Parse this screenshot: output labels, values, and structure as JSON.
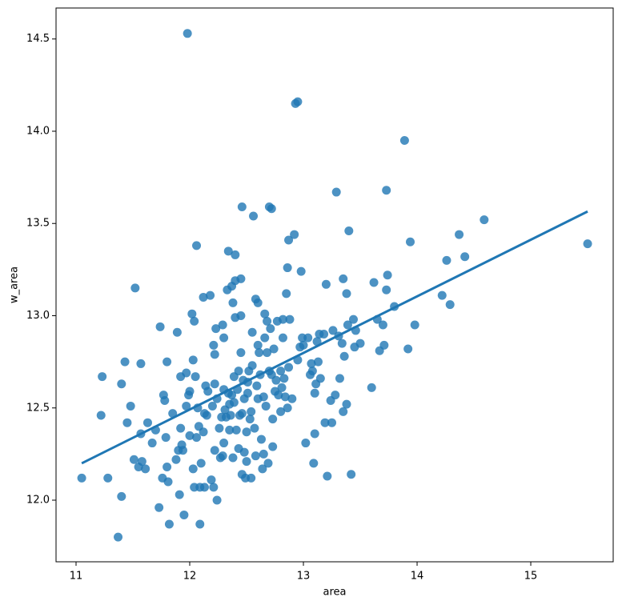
{
  "chart_data": {
    "type": "scatter",
    "xlabel": "area",
    "ylabel": "w_area",
    "color": "#1f77b4",
    "alpha": 0.8,
    "grid": false,
    "xlim": [
      10.824,
      15.725
    ],
    "ylim": [
      11.666,
      14.668
    ],
    "xticks": [
      11,
      12,
      13,
      14,
      15
    ],
    "yticks": [
      {
        "value": 12,
        "label": "12.0"
      },
      12.5,
      {
        "value": 13,
        "label": "13.0"
      },
      13.5,
      {
        "value": 14,
        "label": "14.0"
      },
      14.5
    ],
    "regression": {
      "color": "#1f77b4",
      "x": [
        11.05,
        15.5
      ],
      "y": [
        12.2,
        13.565
      ]
    },
    "x": [
      11.05,
      11.22,
      11.23,
      11.28,
      11.37,
      11.4,
      11.4,
      11.43,
      11.45,
      11.48,
      11.51,
      11.52,
      11.55,
      11.57,
      11.57,
      11.58,
      11.61,
      11.63,
      11.67,
      11.7,
      11.73,
      11.74,
      11.76,
      11.77,
      11.78,
      11.79,
      11.8,
      11.8,
      11.81,
      11.82,
      11.85,
      11.88,
      11.89,
      11.9,
      11.91,
      11.92,
      11.92,
      11.93,
      11.94,
      11.95,
      11.97,
      11.97,
      11.98,
      11.99,
      12.0,
      12.0,
      12.02,
      12.03,
      12.03,
      12.04,
      12.04,
      12.05,
      12.06,
      12.06,
      12.07,
      12.08,
      12.09,
      12.09,
      12.1,
      12.12,
      12.12,
      12.13,
      12.13,
      12.14,
      12.15,
      12.16,
      12.18,
      12.19,
      12.2,
      12.21,
      12.21,
      12.22,
      12.22,
      12.22,
      12.23,
      12.24,
      12.24,
      12.26,
      12.27,
      12.28,
      12.29,
      12.29,
      12.3,
      12.3,
      12.3,
      12.31,
      12.32,
      12.33,
      12.34,
      12.34,
      12.35,
      12.35,
      12.36,
      12.37,
      12.37,
      12.38,
      12.38,
      12.39,
      12.39,
      12.4,
      12.4,
      12.4,
      12.41,
      12.42,
      12.43,
      12.43,
      12.44,
      12.45,
      12.45,
      12.45,
      12.46,
      12.46,
      12.46,
      12.47,
      12.48,
      12.48,
      12.49,
      12.5,
      12.5,
      12.51,
      12.51,
      12.52,
      12.53,
      12.54,
      12.54,
      12.55,
      12.55,
      12.56,
      12.57,
      12.58,
      12.58,
      12.59,
      12.6,
      12.6,
      12.6,
      12.61,
      12.62,
      12.63,
      12.64,
      12.65,
      12.65,
      12.66,
      12.66,
      12.67,
      12.68,
      12.68,
      12.69,
      12.7,
      12.7,
      12.71,
      12.72,
      12.72,
      12.73,
      12.73,
      12.74,
      12.75,
      12.76,
      12.77,
      12.78,
      12.8,
      12.8,
      12.81,
      12.82,
      12.82,
      12.83,
      12.84,
      12.85,
      12.86,
      12.86,
      12.87,
      12.87,
      12.88,
      12.9,
      12.92,
      12.93,
      12.95,
      12.95,
      12.97,
      12.98,
      12.99,
      13.0,
      13.02,
      13.04,
      13.06,
      13.07,
      13.08,
      13.09,
      13.1,
      13.1,
      13.11,
      13.12,
      13.13,
      13.14,
      13.15,
      13.18,
      13.19,
      13.2,
      13.21,
      13.24,
      13.25,
      13.26,
      13.28,
      13.29,
      13.31,
      13.32,
      13.34,
      13.35,
      13.35,
      13.36,
      13.38,
      13.38,
      13.39,
      13.4,
      13.42,
      13.44,
      13.45,
      13.46,
      13.5,
      13.6,
      13.62,
      13.65,
      13.67,
      13.7,
      13.71,
      13.73,
      13.73,
      13.74,
      13.8,
      13.89,
      13.92,
      13.94,
      13.98,
      14.22,
      14.26,
      14.29,
      14.37,
      14.42,
      14.59,
      15.5
    ],
    "y": [
      12.12,
      12.46,
      12.67,
      12.12,
      11.8,
      12.02,
      12.63,
      12.75,
      12.42,
      12.51,
      12.22,
      13.15,
      12.18,
      12.36,
      12.74,
      12.21,
      12.17,
      12.42,
      12.31,
      12.38,
      11.96,
      12.94,
      12.12,
      12.57,
      12.54,
      12.34,
      12.75,
      12.18,
      12.1,
      11.87,
      12.47,
      12.22,
      12.91,
      12.27,
      12.03,
      12.39,
      12.67,
      12.3,
      12.27,
      11.92,
      12.69,
      12.51,
      14.53,
      12.57,
      12.35,
      12.59,
      13.01,
      12.17,
      12.76,
      12.97,
      12.07,
      12.67,
      12.34,
      13.38,
      12.5,
      12.4,
      12.07,
      11.87,
      12.2,
      13.1,
      12.37,
      12.47,
      12.07,
      12.62,
      12.46,
      12.59,
      13.11,
      12.11,
      12.51,
      12.07,
      12.84,
      12.79,
      12.63,
      12.27,
      12.93,
      12.0,
      12.55,
      12.39,
      12.23,
      12.45,
      12.24,
      12.95,
      12.6,
      12.88,
      12.31,
      12.49,
      12.45,
      13.14,
      13.35,
      12.58,
      12.38,
      12.52,
      12.46,
      13.16,
      12.57,
      13.07,
      12.23,
      12.67,
      12.53,
      13.19,
      12.99,
      13.33,
      12.38,
      12.6,
      12.28,
      12.7,
      12.46,
      13.0,
      12.8,
      13.2,
      12.47,
      13.59,
      12.14,
      12.65,
      12.26,
      12.55,
      12.12,
      12.37,
      12.21,
      12.64,
      12.58,
      12.7,
      12.44,
      12.12,
      12.48,
      12.91,
      12.73,
      13.54,
      12.39,
      12.24,
      13.09,
      12.62,
      12.84,
      13.07,
      12.55,
      12.8,
      12.68,
      12.33,
      12.17,
      12.56,
      12.25,
      12.88,
      13.01,
      12.51,
      12.8,
      12.97,
      12.2,
      12.7,
      13.59,
      12.93,
      12.68,
      13.58,
      12.29,
      12.44,
      12.82,
      12.59,
      12.65,
      12.97,
      12.57,
      12.7,
      12.48,
      12.61,
      12.98,
      12.88,
      12.66,
      12.56,
      13.12,
      13.26,
      12.5,
      12.72,
      13.41,
      12.98,
      12.55,
      13.44,
      14.15,
      14.16,
      12.76,
      12.83,
      13.24,
      12.88,
      12.84,
      12.31,
      12.88,
      12.68,
      12.74,
      12.7,
      12.2,
      12.58,
      12.36,
      12.63,
      12.86,
      12.75,
      12.9,
      12.66,
      12.9,
      12.42,
      13.17,
      12.13,
      12.54,
      12.42,
      12.92,
      12.57,
      13.67,
      12.89,
      12.66,
      12.85,
      13.2,
      12.48,
      12.78,
      12.52,
      13.12,
      12.95,
      13.46,
      12.14,
      12.98,
      12.83,
      12.92,
      12.85,
      12.61,
      13.18,
      12.98,
      12.81,
      12.95,
      12.84,
      13.68,
      13.14,
      13.22,
      13.05,
      13.95,
      12.82,
      13.4,
      12.95,
      13.11,
      13.3,
      13.06,
      13.44,
      13.32,
      13.52,
      13.39
    ]
  }
}
